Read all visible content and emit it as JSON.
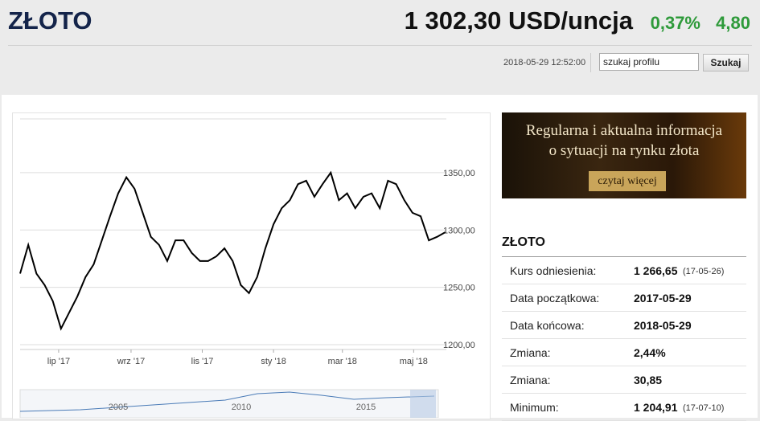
{
  "header": {
    "title": "ZŁOTO",
    "price": "1 302,30 USD/uncja",
    "change_pct": "0,37%",
    "change": "4,80",
    "timestamp": "2018-05-29 12:52:00",
    "search_placeholder": "szukaj profilu",
    "search_button": "Szukaj"
  },
  "chart_data": {
    "type": "line",
    "color": "#000000",
    "x": [
      0,
      7,
      14,
      21,
      28,
      35,
      42,
      49,
      56,
      63,
      70,
      77,
      84,
      91,
      98,
      105,
      112,
      119,
      126,
      133,
      140,
      147,
      154,
      161,
      168,
      175,
      182,
      189,
      196,
      203,
      210,
      217,
      224,
      231,
      238,
      245,
      252,
      259,
      266,
      273,
      280,
      287,
      294,
      301,
      308,
      315,
      322,
      329,
      336,
      343,
      350,
      357,
      364
    ],
    "values": [
      1262,
      1287,
      1262,
      1252,
      1238,
      1214,
      1228,
      1242,
      1259,
      1270,
      1291,
      1312,
      1332,
      1346,
      1336,
      1315,
      1294,
      1287,
      1273,
      1291,
      1291,
      1280,
      1273,
      1273,
      1277,
      1284,
      1273,
      1252,
      1245,
      1259,
      1284,
      1305,
      1319,
      1326,
      1340,
      1343,
      1329,
      1340,
      1350,
      1326,
      1332,
      1319,
      1329,
      1332,
      1319,
      1343,
      1340,
      1326,
      1315,
      1312,
      1291,
      1294,
      1298
    ],
    "xlim": [
      0,
      365
    ],
    "xticks": [
      {
        "value": 33,
        "label": "lip '17"
      },
      {
        "value": 95,
        "label": "wrz '17"
      },
      {
        "value": 156,
        "label": "lis '17"
      },
      {
        "value": 217,
        "label": "sty '18"
      },
      {
        "value": 276,
        "label": "mar '18"
      },
      {
        "value": 337,
        "label": "maj '18"
      }
    ],
    "ylim": [
      1195.8,
      1396.9
    ],
    "yticks": [
      {
        "value": 1200,
        "label": "1200,00"
      },
      {
        "value": 1250,
        "label": "1250,00"
      },
      {
        "value": 1300,
        "label": "1300,00"
      },
      {
        "value": 1350,
        "label": "1350,00"
      }
    ],
    "grid": true
  },
  "navigator": {
    "labels": [
      "2005",
      "2010",
      "2015"
    ]
  },
  "promo": {
    "lines": [
      "Regularna i aktualna informacja",
      "o sytuacji na rynku złota"
    ],
    "button": "czytaj więcej"
  },
  "summary": {
    "title": "ZŁOTO",
    "rows": [
      [
        "Kurs odniesienia:",
        "1 266,65",
        "(17-05-26)"
      ],
      [
        "Data początkowa:",
        "2017-05-29"
      ],
      [
        "Data końcowa:",
        "2018-05-29"
      ],
      [
        "Zmiana:",
        "2,44%"
      ],
      [
        "Zmiana:",
        "30,85"
      ],
      [
        "Minimum:",
        "1 204,91",
        "(17-07-10)"
      ]
    ]
  }
}
